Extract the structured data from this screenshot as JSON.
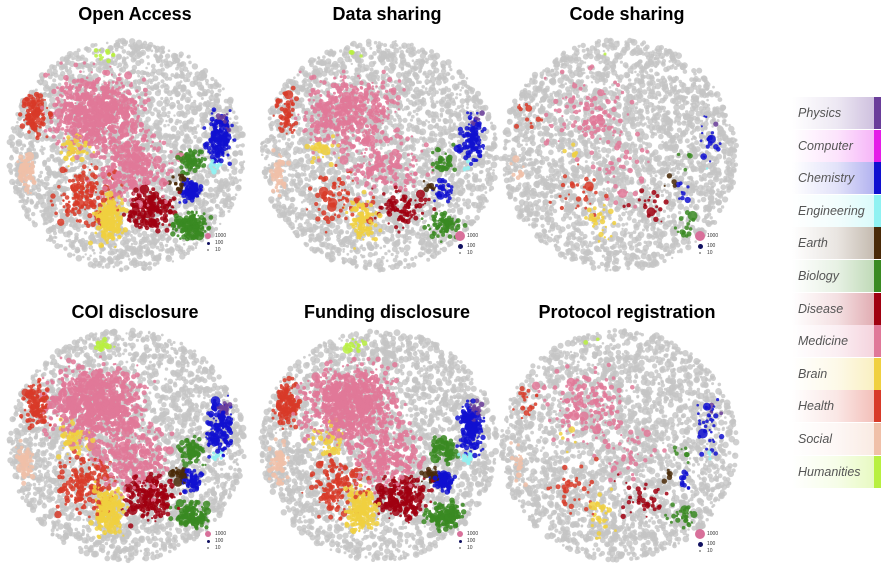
{
  "chart_data": {
    "type": "scatter",
    "panels": [
      {
        "title": "Open Access",
        "coverage": 0.85,
        "legend_style": "small"
      },
      {
        "title": "Data sharing",
        "coverage": 0.42,
        "legend_style": "large"
      },
      {
        "title": "Code sharing",
        "coverage": 0.1,
        "legend_style": "large"
      },
      {
        "title": "COI disclosure",
        "coverage": 0.85,
        "legend_style": "small"
      },
      {
        "title": "Funding disclosure",
        "coverage": 0.85,
        "legend_style": "small"
      },
      {
        "title": "Protocol registration",
        "coverage": 0.15,
        "legend_style": "large"
      }
    ],
    "size_legend": [
      "1000",
      "100",
      "10"
    ],
    "fields": [
      {
        "name": "Physics",
        "color": "#6a3d9a"
      },
      {
        "name": "Computer",
        "color": "#e41ce8"
      },
      {
        "name": "Chemistry",
        "color": "#1010d0"
      },
      {
        "name": "Engineering",
        "color": "#8ff2f2"
      },
      {
        "name": "Earth",
        "color": "#4a2a08"
      },
      {
        "name": "Biology",
        "color": "#3a8a22"
      },
      {
        "name": "Disease",
        "color": "#a00010"
      },
      {
        "name": "Medicine",
        "color": "#e07898"
      },
      {
        "name": "Brain",
        "color": "#f0d040"
      },
      {
        "name": "Health",
        "color": "#d83a28"
      },
      {
        "name": "Social",
        "color": "#f0c0a8"
      },
      {
        "name": "Humanities",
        "color": "#b8f040"
      }
    ],
    "background_color": "#c4c4c4"
  }
}
